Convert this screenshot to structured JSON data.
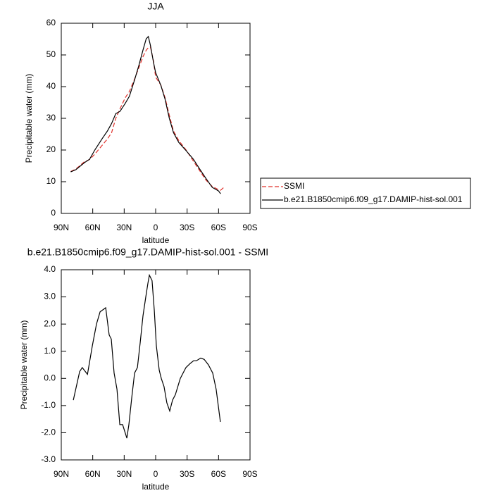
{
  "chart_data": [
    {
      "type": "line",
      "title": "JJA",
      "xlabel": "latitude",
      "ylabel": "Precipitable water (mm)",
      "x": [
        81,
        76,
        68,
        63,
        58,
        51,
        46,
        42,
        38,
        34,
        29,
        25,
        20,
        16,
        12,
        9,
        7,
        5,
        2,
        0,
        -5,
        -9,
        -13,
        -17,
        -22,
        -29,
        -36,
        -42,
        -48,
        -54,
        -60,
        -62,
        -65
      ],
      "series": [
        {
          "name": "SSMI",
          "color": "#e0302a",
          "dash": "dashed",
          "values": [
            13.2,
            14,
            16.3,
            17,
            18.7,
            21.5,
            23.5,
            25.5,
            30,
            33,
            36.5,
            38.5,
            42.5,
            46,
            49.5,
            51.5,
            52.3,
            52.5,
            48,
            43,
            40.5,
            36.5,
            31,
            26,
            23,
            20,
            16.5,
            13.5,
            10.5,
            8.5,
            7.5,
            7.3,
            8.2
          ]
        },
        {
          "name": "b.e21.B1850cmip6.f09_g17.DAMIP-hist-sol.001",
          "color": "#000000",
          "dash": "solid",
          "values": [
            13.1,
            13.8,
            16,
            17.1,
            20,
            23.6,
            26,
            28.4,
            31.5,
            32.2,
            34.7,
            37,
            42.2,
            46.7,
            51.6,
            55.1,
            55.8,
            53,
            47.6,
            44.4,
            40.4,
            36,
            30,
            25.5,
            22.4,
            19.8,
            17.1,
            14,
            11,
            8.2,
            7.1,
            6.2,
            null
          ]
        }
      ],
      "xlim": [
        90,
        -90
      ],
      "xticks": [
        {
          "value": 90,
          "label": "90N"
        },
        {
          "value": 60,
          "label": "60N"
        },
        {
          "value": 30,
          "label": "30N"
        },
        0,
        {
          "value": -30,
          "label": "30S"
        },
        {
          "value": -60,
          "label": "60S"
        },
        {
          "value": -90,
          "label": "90S"
        }
      ],
      "ylim": [
        0,
        60
      ],
      "yticks": [
        0,
        10,
        20,
        30,
        40,
        50,
        60
      ],
      "legend": "right"
    },
    {
      "type": "line",
      "title": "b.e21.B1850cmip6.f09_g17.DAMIP-hist-sol.001 - SSMI",
      "xlabel": "latitude",
      "ylabel": "Precipitable water (mm)",
      "x": [
        78.5,
        72.5,
        70,
        65,
        60.4,
        56.4,
        53,
        47.6,
        44.3,
        42.3,
        39.6,
        36.9,
        34.2,
        31.5,
        27.5,
        25.5,
        22.8,
        20.1,
        17.4,
        14.8,
        12.1,
        9.4,
        7.4,
        6,
        3.4,
        1.3,
        -0.7,
        -3.4,
        -5.4,
        -8,
        -10.7,
        -13.4,
        -16.1,
        -18.8,
        -23.5,
        -28.9,
        -32.9,
        -36.2,
        -38.9,
        -43,
        -46.3,
        -50.3,
        -54.4,
        -57.7,
        -61.7
      ],
      "values": [
        -0.8,
        0.25,
        0.4,
        0.15,
        1.2,
        2.0,
        2.45,
        2.6,
        1.6,
        1.45,
        0.2,
        -0.4,
        -1.7,
        -1.7,
        -2.2,
        -1.7,
        -0.7,
        0.2,
        0.4,
        1.3,
        2.3,
        3.0,
        3.5,
        3.8,
        3.6,
        2.5,
        1.2,
        0.3,
        0,
        -0.3,
        -0.9,
        -1.2,
        -0.8,
        -0.6,
        0,
        0.4,
        0.55,
        0.65,
        0.65,
        0.75,
        0.7,
        0.5,
        0.2,
        -0.4,
        -1.6
      ],
      "color": "#000000",
      "xlim": [
        90,
        -90
      ],
      "xticks": [
        {
          "value": 90,
          "label": "90N"
        },
        {
          "value": 60,
          "label": "60N"
        },
        {
          "value": 30,
          "label": "30N"
        },
        0,
        {
          "value": -30,
          "label": "30S"
        },
        {
          "value": -60,
          "label": "60S"
        },
        {
          "value": -90,
          "label": "90S"
        }
      ],
      "ylim": [
        -3,
        4
      ],
      "yticks": [
        {
          "value": -3,
          "label": "-3.0"
        },
        {
          "value": -2,
          "label": "-2.0"
        },
        {
          "value": -1,
          "label": "-1.0"
        },
        {
          "value": 0,
          "label": "0.0"
        },
        {
          "value": 1,
          "label": "1.0"
        },
        {
          "value": 2,
          "label": "2.0"
        },
        {
          "value": 3,
          "label": "3.0"
        },
        {
          "value": 4,
          "label": "4.0"
        }
      ]
    }
  ]
}
